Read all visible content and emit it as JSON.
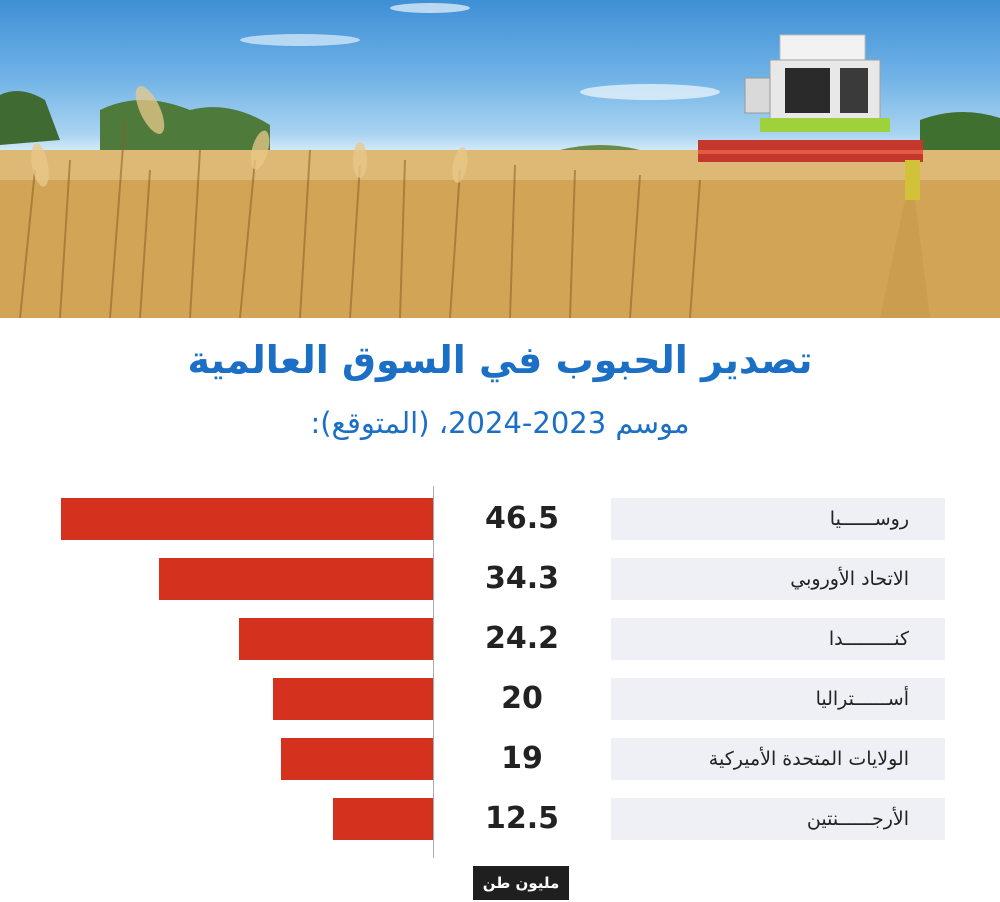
{
  "header": {
    "title": "تصدير الحبوب في السوق العالمية",
    "subtitle": "موسم 2023-2024، (المتوقع):"
  },
  "colors": {
    "title": "#1b6fc4",
    "bar": "#d4321f",
    "label_bg": "#eef0f5"
  },
  "chart_data": {
    "type": "bar",
    "orientation": "horizontal",
    "categories": [
      "روســــــيا",
      "الاتحاد الأوروبي",
      "كنـــــــــدا",
      "أســــــتراليا",
      "الولايات المتحدة الأميركية",
      "الأرجــــــنتين"
    ],
    "values": [
      46.5,
      34.3,
      24.2,
      20,
      19,
      12.5
    ],
    "value_labels": [
      "46.5",
      "34.3",
      "24.2",
      "20",
      "19",
      "12.5"
    ],
    "unit": "مليون طن",
    "xlim": [
      0,
      47.5
    ],
    "grid": false
  }
}
